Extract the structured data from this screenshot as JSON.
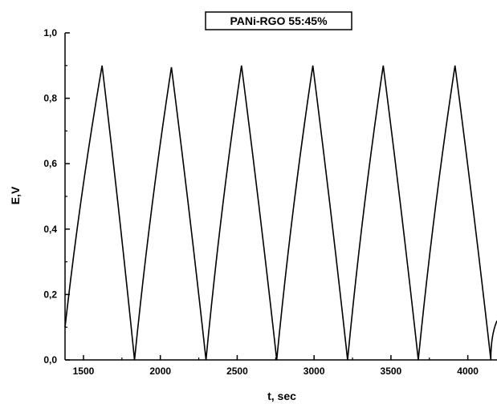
{
  "chart_data": {
    "type": "line",
    "title": "PANi-RGO 55:45%",
    "xlabel": "t, sec",
    "ylabel": "E,V",
    "xlim": [
      1380,
      4190
    ],
    "ylim": [
      0,
      1.0
    ],
    "x_ticks": [
      1500,
      2000,
      2500,
      3000,
      3500,
      4000
    ],
    "x_tick_labels": [
      "1500",
      "2000",
      "2500",
      "3000",
      "3500",
      "4000"
    ],
    "y_ticks": [
      0.0,
      0.2,
      0.4,
      0.6,
      0.8,
      1.0
    ],
    "y_tick_labels": [
      "0,0",
      "0,2",
      "0,4",
      "0,6",
      "0,8",
      "1,0"
    ],
    "grid": false,
    "line_color": "#000000",
    "series": [
      {
        "x": [
          1380,
          1621,
          1832,
          2072,
          2297,
          2528,
          2757,
          2992,
          3218,
          3450,
          3678,
          3917,
          4150,
          4190
        ],
        "y": [
          0.1,
          0.9,
          0.0,
          0.895,
          0.0,
          0.9,
          0.0,
          0.9,
          0.0,
          0.9,
          0.0,
          0.9,
          0.0,
          0.12
        ]
      }
    ]
  }
}
